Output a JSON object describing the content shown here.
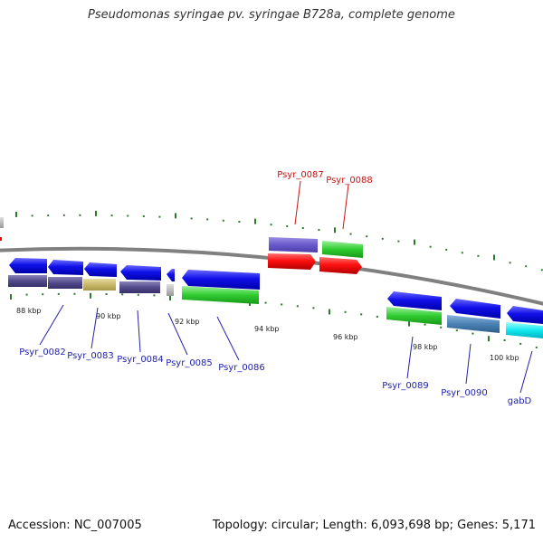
{
  "title": "Pseudomonas syringae pv. syringae B728a, complete genome",
  "footer": {
    "accession": "Accession: NC_007005",
    "summary": "Topology: circular; Length: 6,093,698 bp; Genes: 5,171"
  },
  "colors": {
    "backbone": "#808080",
    "tick": "#2d7a2d",
    "label_reverse": "#2222aa",
    "label_forward": "#cc1111"
  },
  "kbp_labels": [
    "88 kbp",
    "90 kbp",
    "92 kbp",
    "94 kbp",
    "96 kbp",
    "98 kbp",
    "100 kbp"
  ],
  "genes": [
    {
      "name": "Psyr_0082",
      "strand": "reverse"
    },
    {
      "name": "Psyr_0083",
      "strand": "reverse"
    },
    {
      "name": "Psyr_0084",
      "strand": "reverse"
    },
    {
      "name": "Psyr_0085",
      "strand": "reverse"
    },
    {
      "name": "Psyr_0086",
      "strand": "reverse"
    },
    {
      "name": "Psyr_0087",
      "strand": "forward"
    },
    {
      "name": "Psyr_0088",
      "strand": "forward"
    },
    {
      "name": "Psyr_0089",
      "strand": "reverse"
    },
    {
      "name": "Psyr_0090",
      "strand": "reverse"
    },
    {
      "name": "gabD",
      "strand": "reverse"
    }
  ]
}
